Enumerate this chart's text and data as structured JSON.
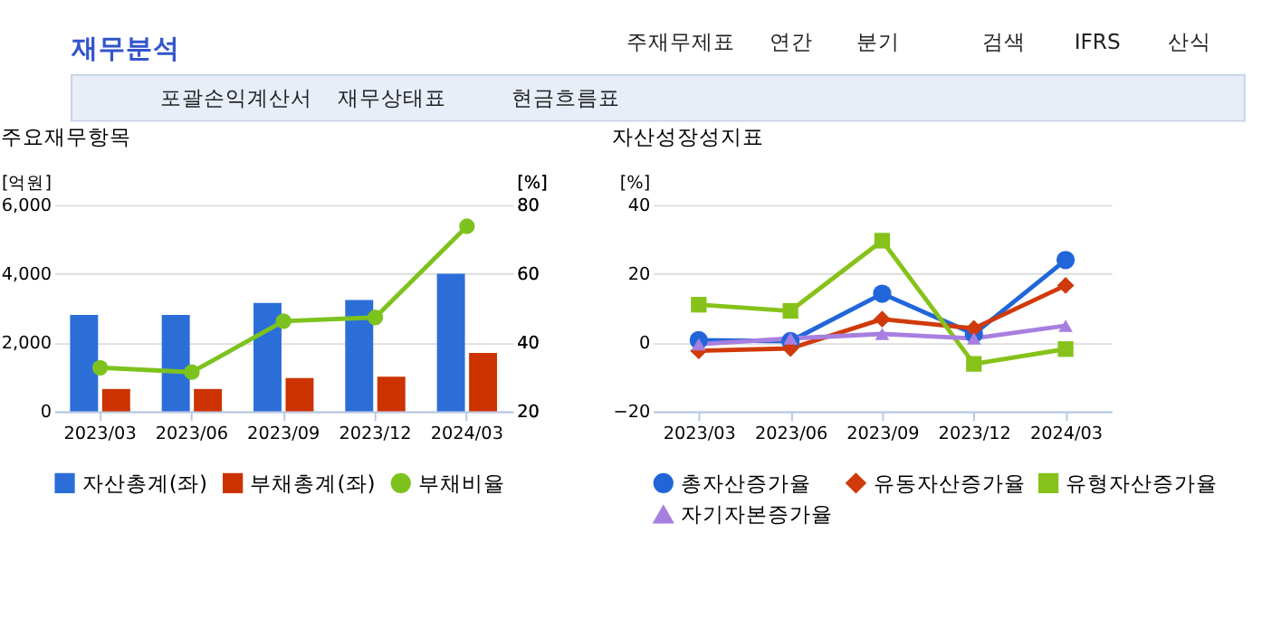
{
  "chart_data": [
    {
      "type": "other",
      "title": "재무분석",
      "annotations": [
        "주재무제표",
        "연간",
        "분기",
        "검색",
        "IFRS",
        "산식",
        "포괄손익계산서",
        "재무상태표",
        "현금흐름표"
      ]
    },
    {
      "type": "bar",
      "title": "주요재무항목",
      "ylabel": "[억원]",
      "y2label": "[%]",
      "categories": [
        "2023/03",
        "2023/06",
        "2023/09",
        "2023/12",
        "2024/03"
      ],
      "series": [
        {
          "name": "자산총계(좌)",
          "color": "#2b6ed8",
          "values": [
            2800,
            2800,
            3150,
            3240,
            4000
          ]
        },
        {
          "name": "부채총계(좌)",
          "color": "#cc3300",
          "values": [
            650,
            650,
            970,
            1010,
            1700
          ]
        },
        {
          "name": "부채비율",
          "type": "line",
          "axis": "y2",
          "color": "#7dc21e",
          "marker": "circle",
          "values": [
            32.7,
            31.4,
            46.2,
            47.3,
            73.8
          ]
        }
      ],
      "ylim": [
        0,
        6000
      ],
      "yticks": [
        0,
        {
          "value": 2000,
          "label": "2,000"
        },
        {
          "value": 4000,
          "label": "4,000"
        },
        {
          "value": 6000,
          "label": "6,000"
        }
      ],
      "y2lim": [
        20,
        80
      ],
      "y2ticks": [
        20,
        40,
        60,
        80
      ],
      "grid": "y",
      "legend": "bottom"
    },
    {
      "type": "line",
      "title": "자산성장성지표",
      "ylabel": "[%]",
      "categories": [
        "2023/03",
        "2023/06",
        "2023/09",
        "2023/12",
        "2024/03"
      ],
      "series": [
        {
          "name": "총자산증가율",
          "color": "#2166d9",
          "marker": "circle",
          "values": [
            0.7,
            0.4,
            14.2,
            2.5,
            24.0
          ]
        },
        {
          "name": "유동자산증가율",
          "color": "#d03a0a",
          "marker": "diamond",
          "values": [
            -2.4,
            -1.7,
            6.8,
            4.1,
            16.6
          ]
        },
        {
          "name": "유형자산증가율",
          "color": "#86c21a",
          "marker": "square",
          "values": [
            11.0,
            9.2,
            29.6,
            -6.2,
            -1.9
          ]
        },
        {
          "name": "자기자본증가율",
          "color": "#a77fe0",
          "marker": "triangle",
          "values": [
            -0.5,
            1.2,
            2.5,
            1.2,
            4.9
          ]
        }
      ],
      "ylim": [
        -20,
        40
      ],
      "yticks": [
        -20,
        0,
        20,
        40
      ],
      "grid": "y",
      "legend": "bottom"
    }
  ]
}
